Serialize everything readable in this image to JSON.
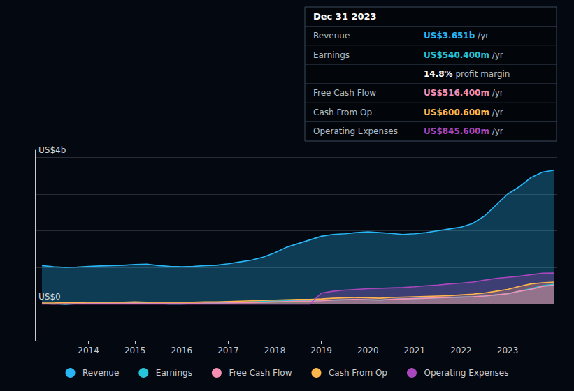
{
  "chart_data": {
    "type": "area",
    "x": [
      2013.0,
      2013.25,
      2013.5,
      2013.75,
      2014.0,
      2014.25,
      2014.5,
      2014.75,
      2015.0,
      2015.25,
      2015.5,
      2015.75,
      2016.0,
      2016.25,
      2016.5,
      2016.75,
      2017.0,
      2017.25,
      2017.5,
      2017.75,
      2018.0,
      2018.25,
      2018.5,
      2018.75,
      2019.0,
      2019.25,
      2019.5,
      2019.75,
      2020.0,
      2020.25,
      2020.5,
      2020.75,
      2021.0,
      2021.25,
      2021.5,
      2021.75,
      2022.0,
      2022.25,
      2022.5,
      2022.75,
      2023.0,
      2023.25,
      2023.5,
      2023.75,
      2024.0
    ],
    "series": [
      {
        "name": "Revenue",
        "color": "#29b6f6",
        "values": [
          1.05,
          1.02,
          1.0,
          1.01,
          1.03,
          1.04,
          1.05,
          1.06,
          1.08,
          1.09,
          1.05,
          1.03,
          1.02,
          1.03,
          1.05,
          1.06,
          1.1,
          1.15,
          1.2,
          1.28,
          1.4,
          1.55,
          1.65,
          1.75,
          1.85,
          1.9,
          1.92,
          1.95,
          1.97,
          1.95,
          1.93,
          1.9,
          1.92,
          1.95,
          2.0,
          2.05,
          2.1,
          2.2,
          2.4,
          2.7,
          3.0,
          3.2,
          3.45,
          3.6,
          3.651
        ]
      },
      {
        "name": "Earnings",
        "color": "#26c6da",
        "values": [
          0.02,
          0.01,
          -0.01,
          0.01,
          0.02,
          0.03,
          0.02,
          0.02,
          0.04,
          0.03,
          0.01,
          0.0,
          0.0,
          0.01,
          0.02,
          0.03,
          0.04,
          0.05,
          0.06,
          0.07,
          0.08,
          0.09,
          0.1,
          0.1,
          0.1,
          0.11,
          0.12,
          0.13,
          0.12,
          0.11,
          0.13,
          0.14,
          0.15,
          0.16,
          0.17,
          0.18,
          0.19,
          0.2,
          0.22,
          0.25,
          0.28,
          0.35,
          0.42,
          0.5,
          0.5404
        ]
      },
      {
        "name": "Free Cash Flow",
        "color": "#f48fb1",
        "values": [
          0.01,
          0.0,
          0.01,
          0.01,
          0.02,
          0.02,
          0.02,
          0.02,
          0.03,
          0.02,
          0.02,
          0.02,
          0.02,
          0.02,
          0.03,
          0.03,
          0.03,
          0.04,
          0.04,
          0.05,
          0.06,
          0.07,
          0.08,
          0.08,
          0.09,
          0.11,
          0.12,
          0.13,
          0.12,
          0.11,
          0.13,
          0.14,
          0.15,
          0.16,
          0.17,
          0.18,
          0.19,
          0.2,
          0.22,
          0.25,
          0.28,
          0.35,
          0.4,
          0.48,
          0.5164
        ]
      },
      {
        "name": "Cash From Op",
        "color": "#ffb74d",
        "values": [
          0.03,
          0.03,
          0.04,
          0.04,
          0.05,
          0.05,
          0.05,
          0.05,
          0.06,
          0.05,
          0.05,
          0.05,
          0.05,
          0.05,
          0.06,
          0.06,
          0.07,
          0.08,
          0.09,
          0.1,
          0.11,
          0.12,
          0.13,
          0.13,
          0.14,
          0.16,
          0.17,
          0.18,
          0.17,
          0.16,
          0.18,
          0.19,
          0.2,
          0.21,
          0.22,
          0.23,
          0.25,
          0.27,
          0.3,
          0.35,
          0.4,
          0.48,
          0.55,
          0.58,
          0.6006
        ]
      },
      {
        "name": "Operating Expenses",
        "color": "#ab47bc",
        "values": [
          0.0,
          0.0,
          0.0,
          0.0,
          0.0,
          0.0,
          0.0,
          0.0,
          0.0,
          0.0,
          0.0,
          0.0,
          0.0,
          0.0,
          0.0,
          0.0,
          0.0,
          0.0,
          0.0,
          0.0,
          0.0,
          0.0,
          0.0,
          0.0,
          0.3,
          0.35,
          0.38,
          0.4,
          0.42,
          0.43,
          0.44,
          0.45,
          0.47,
          0.5,
          0.52,
          0.55,
          0.57,
          0.6,
          0.65,
          0.7,
          0.73,
          0.76,
          0.8,
          0.84,
          0.8456
        ]
      }
    ],
    "xlim": [
      2012.85,
      2024.05
    ],
    "xticks": [
      2014,
      2015,
      2016,
      2017,
      2018,
      2019,
      2020,
      2021,
      2022,
      2023
    ],
    "ylim": [
      -1,
      4.2
    ],
    "yticks": [
      -1,
      0,
      1,
      2,
      3,
      4
    ],
    "grid": true,
    "legend": "bottom",
    "tick_labels": "x",
    "annotations": [
      {
        "text": "US$4b",
        "y": 4
      },
      {
        "text": "US$0",
        "y": 0
      }
    ],
    "info_box": {
      "title": "Dec 31 2023",
      "rows": [
        {
          "label": "Revenue",
          "value": "US$3.651b",
          "suffix": "/yr",
          "color": "#29b6f6"
        },
        {
          "label": "Earnings",
          "value": "US$540.400m",
          "suffix": "/yr",
          "color": "#26c6da"
        },
        {
          "value": "14.8%",
          "suffix": "profit margin",
          "color": "#ffffff"
        },
        {
          "label": "Free Cash Flow",
          "value": "US$516.400m",
          "suffix": "/yr",
          "color": "#f48fb1"
        },
        {
          "label": "Cash From Op",
          "value": "US$600.600m",
          "suffix": "/yr",
          "color": "#ffb74d"
        },
        {
          "label": "Operating Expenses",
          "value": "US$845.600m",
          "suffix": "/yr",
          "color": "#ab47bc"
        }
      ]
    }
  }
}
